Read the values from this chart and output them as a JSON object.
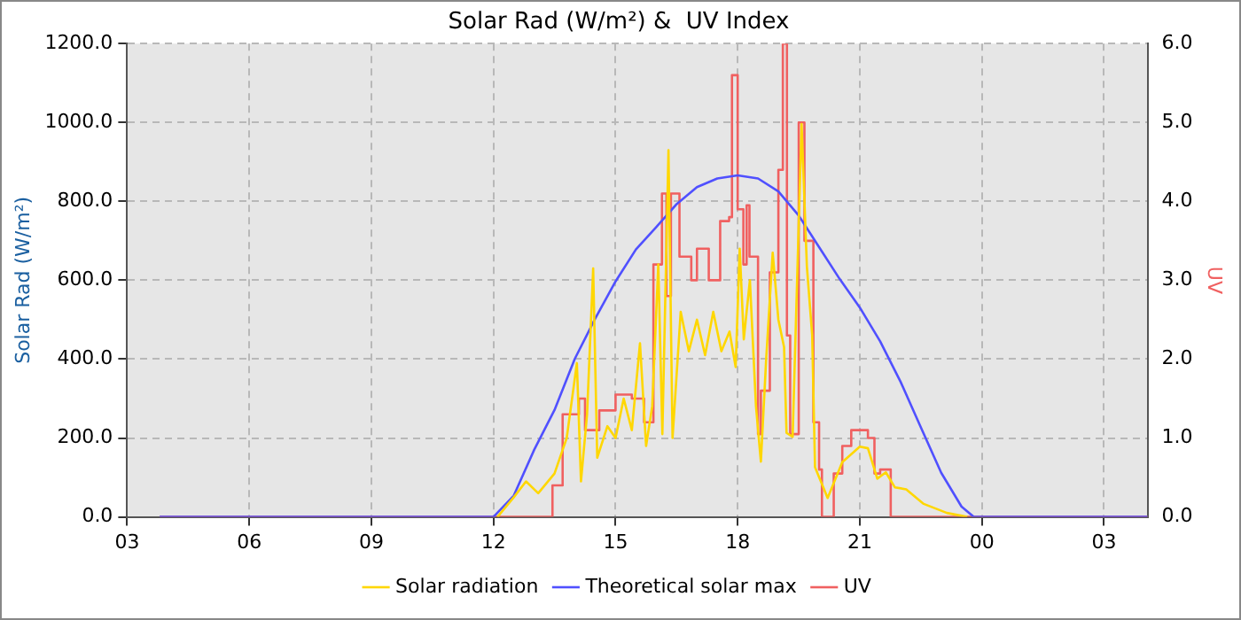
{
  "chart_data": {
    "type": "line",
    "title": "Solar Rad (W/m²) &  UV Index",
    "ylabel": "Solar Rad (W/m²)",
    "y2label": "UV",
    "xlim": [
      3,
      28.07
    ],
    "xticks": [
      {
        "value": 3,
        "label": "03"
      },
      {
        "value": 6,
        "label": "06"
      },
      {
        "value": 9,
        "label": "09"
      },
      {
        "value": 12,
        "label": "12"
      },
      {
        "value": 15,
        "label": "15"
      },
      {
        "value": 18,
        "label": "18"
      },
      {
        "value": 21,
        "label": "21"
      },
      {
        "value": 24,
        "label": "00"
      },
      {
        "value": 27,
        "label": "03"
      }
    ],
    "ylim": [
      0,
      1200
    ],
    "yticks": [
      {
        "value": 0,
        "label": "0.0"
      },
      {
        "value": 200,
        "label": "200.0"
      },
      {
        "value": 400,
        "label": "400.0"
      },
      {
        "value": 600,
        "label": "600.0"
      },
      {
        "value": 800,
        "label": "800.0"
      },
      {
        "value": 1000,
        "label": "1000.0"
      },
      {
        "value": 1200,
        "label": "1200.0"
      }
    ],
    "y2lim": [
      0,
      6
    ],
    "y2ticks": [
      {
        "value": 0,
        "label": "0.0"
      },
      {
        "value": 1,
        "label": "1.0"
      },
      {
        "value": 2,
        "label": "2.0"
      },
      {
        "value": 3,
        "label": "3.0"
      },
      {
        "value": 4,
        "label": "4.0"
      },
      {
        "value": 5,
        "label": "5.0"
      },
      {
        "value": 6,
        "label": "6.0"
      }
    ],
    "grid": true,
    "legend": "bottom",
    "marker": "none",
    "series": [
      {
        "name": "Solar radiation",
        "color": "#ffd700",
        "x": [
          12.1,
          12.5,
          12.8,
          13.1,
          13.5,
          13.8,
          14.05,
          14.15,
          14.3,
          14.45,
          14.55,
          14.8,
          15.0,
          15.2,
          15.4,
          15.6,
          15.75,
          15.9,
          16.05,
          16.15,
          16.3,
          16.4,
          16.6,
          16.8,
          17.0,
          17.2,
          17.4,
          17.6,
          17.8,
          17.95,
          18.05,
          18.15,
          18.3,
          18.45,
          18.57,
          18.7,
          18.86,
          19.0,
          19.14,
          19.2,
          19.35,
          19.57,
          19.7,
          19.83,
          19.9,
          20.21,
          20.57,
          21.0,
          21.2,
          21.43,
          21.64,
          21.86,
          22.14,
          22.57,
          23.14,
          23.64
        ],
        "values": [
          0,
          50,
          90,
          60,
          110,
          200,
          390,
          90,
          260,
          630,
          150,
          230,
          200,
          300,
          220,
          440,
          180,
          280,
          640,
          210,
          930,
          200,
          520,
          420,
          500,
          410,
          520,
          420,
          470,
          380,
          680,
          450,
          600,
          280,
          140,
          400,
          670,
          500,
          430,
          213,
          203,
          996,
          635,
          461,
          126,
          48,
          139,
          178,
          174,
          97,
          113,
          75,
          70,
          33,
          10,
          0
        ]
      },
      {
        "name": "Theoretical solar max",
        "color": "#5050ff",
        "x": [
          3.8,
          12,
          12.5,
          13,
          13.5,
          14,
          14.5,
          15,
          15.5,
          16,
          16.5,
          17,
          17.5,
          18,
          18.5,
          19,
          19.5,
          20,
          20.5,
          21,
          21.5,
          22,
          22.5,
          23,
          23.5,
          23.8,
          28.07
        ],
        "values": [
          0,
          0,
          54,
          170,
          271,
          401,
          503,
          597,
          678,
          735,
          793,
          836,
          858,
          866,
          858,
          825,
          764,
          684,
          604,
          531,
          445,
          343,
          227,
          112,
          26,
          0,
          0
        ]
      },
      {
        "name": "UV",
        "type": "step",
        "axis": "y2",
        "color": "#f06060",
        "x": [
          3.8,
          13.43,
          13.45,
          13.7,
          13.9,
          14.1,
          14.25,
          14.6,
          15.0,
          15.4,
          15.7,
          15.93,
          16.14,
          16.25,
          16.36,
          16.57,
          16.86,
          17.0,
          17.29,
          17.57,
          17.79,
          17.86,
          18.0,
          18.14,
          18.22,
          18.29,
          18.5,
          18.57,
          18.79,
          19.0,
          19.11,
          19.21,
          19.29,
          19.5,
          19.64,
          19.86,
          20.0,
          20.07,
          20.29,
          20.36,
          20.57,
          20.79,
          21.2,
          21.36,
          21.5,
          21.71,
          21.76,
          28.07
        ],
        "values": [
          0,
          0,
          0.4,
          1.3,
          1.3,
          1.5,
          1.1,
          1.35,
          1.55,
          1.5,
          1.2,
          3.2,
          4.1,
          2.8,
          4.1,
          3.3,
          3.0,
          3.4,
          3.0,
          3.75,
          3.8,
          5.6,
          3.9,
          3.2,
          3.95,
          3.3,
          1.05,
          1.6,
          3.1,
          4.4,
          6.0,
          2.3,
          1.05,
          5.0,
          3.5,
          1.2,
          0.6,
          0,
          0,
          0.55,
          0.9,
          1.1,
          1.0,
          0.55,
          0.6,
          0.6,
          0,
          0
        ]
      }
    ]
  }
}
